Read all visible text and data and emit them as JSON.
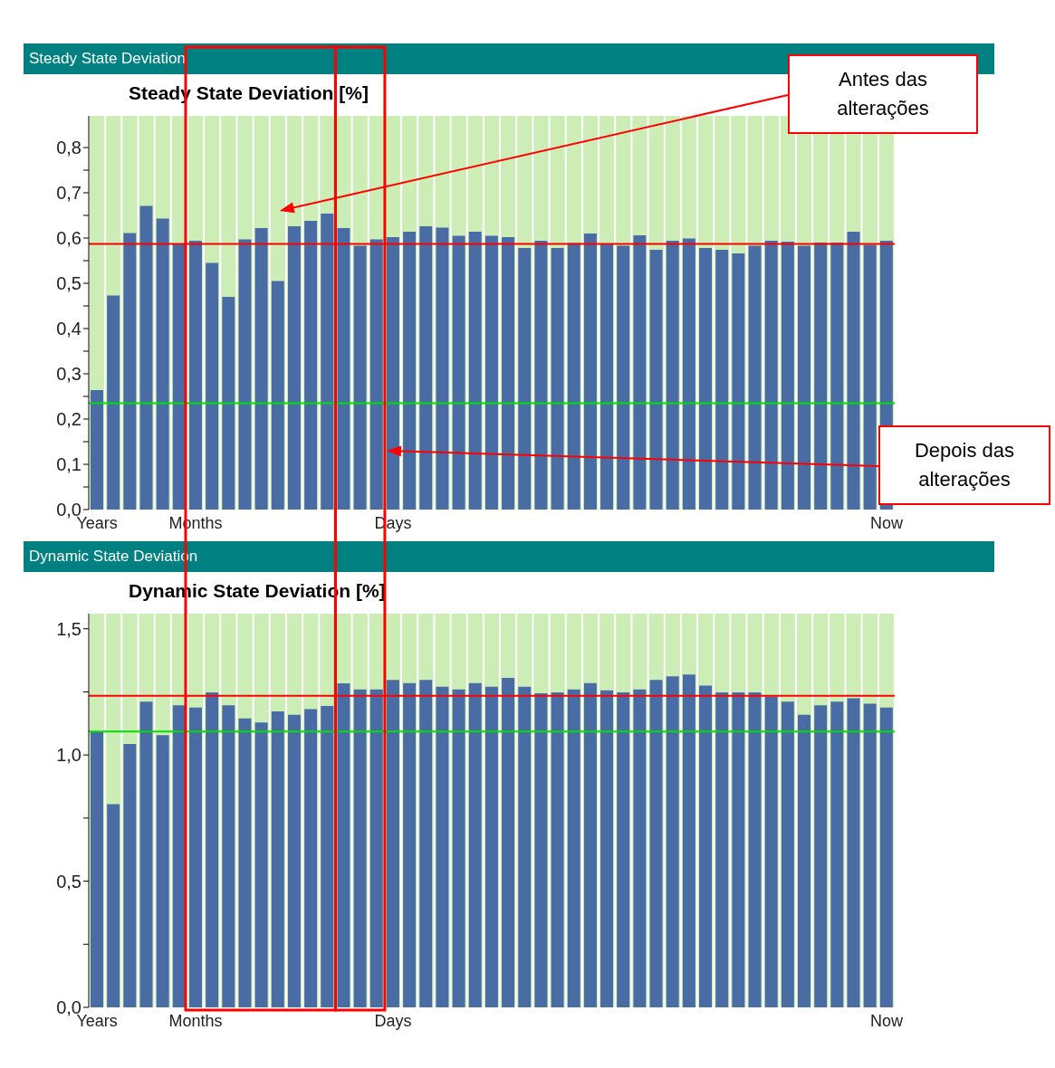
{
  "chart_data": [
    {
      "type": "bar",
      "subtitle": "Steady State Deviation",
      "title": "Steady State Deviation [%]",
      "categories": [
        "Years",
        null,
        null,
        null,
        null,
        null,
        "Months",
        null,
        null,
        null,
        null,
        null,
        null,
        null,
        null,
        null,
        null,
        null,
        "Days",
        null,
        null,
        null,
        null,
        null,
        null,
        null,
        null,
        null,
        null,
        null,
        null,
        null,
        null,
        null,
        null,
        null,
        null,
        null,
        null,
        null,
        null,
        null,
        null,
        null,
        null,
        null,
        null,
        null,
        "Now"
      ],
      "values": [
        0.264,
        0.473,
        0.611,
        0.671,
        0.643,
        0.587,
        0.594,
        0.545,
        0.47,
        0.597,
        0.622,
        0.505,
        0.626,
        0.638,
        0.654,
        0.622,
        0.583,
        0.597,
        0.602,
        0.614,
        0.626,
        0.623,
        0.605,
        0.614,
        0.605,
        0.602,
        0.578,
        0.594,
        0.578,
        0.589,
        0.61,
        0.586,
        0.583,
        0.606,
        0.574,
        0.594,
        0.599,
        0.578,
        0.574,
        0.566,
        0.583,
        0.594,
        0.592,
        0.583,
        0.59,
        0.59,
        0.614,
        0.585,
        0.594
      ],
      "color": "#4a6ca5",
      "ylim": [
        0,
        0.87
      ],
      "yticks": [
        {
          "value": 0,
          "label": "0,0"
        },
        {
          "value": 0.05,
          "label": null
        },
        {
          "value": 0.1,
          "label": "0,1"
        },
        {
          "value": 0.15,
          "label": null
        },
        {
          "value": 0.2,
          "label": "0,2"
        },
        {
          "value": 0.25,
          "label": null
        },
        {
          "value": 0.3,
          "label": "0,3"
        },
        {
          "value": 0.35,
          "label": null
        },
        {
          "value": 0.4,
          "label": "0,4"
        },
        {
          "value": 0.45,
          "label": null
        },
        {
          "value": 0.5,
          "label": "0,5"
        },
        {
          "value": 0.55,
          "label": null
        },
        {
          "value": 0.6,
          "label": "0,6"
        },
        {
          "value": 0.65,
          "label": null
        },
        {
          "value": 0.7,
          "label": "0,7"
        },
        {
          "value": 0.75,
          "label": null
        },
        {
          "value": 0.8,
          "label": "0,8"
        }
      ],
      "ref_lines": [
        {
          "axis": "y",
          "value": 0.235,
          "color": "#00e000"
        },
        {
          "axis": "y",
          "value": 0.587,
          "color": "#ff0000"
        }
      ],
      "annotations": [
        "Antes das alterações",
        "Depois das alterações"
      ]
    },
    {
      "type": "bar",
      "subtitle": "Dynamic State Deviation",
      "title": "Dynamic State Deviation [%]",
      "categories": [
        "Years",
        null,
        null,
        null,
        null,
        null,
        "Months",
        null,
        null,
        null,
        null,
        null,
        null,
        null,
        null,
        null,
        null,
        null,
        "Days",
        null,
        null,
        null,
        null,
        null,
        null,
        null,
        null,
        null,
        null,
        null,
        null,
        null,
        null,
        null,
        null,
        null,
        null,
        null,
        null,
        null,
        null,
        null,
        null,
        null,
        null,
        null,
        null,
        null,
        "Now"
      ],
      "values": [
        1.091,
        0.805,
        1.044,
        1.211,
        1.079,
        1.197,
        1.188,
        1.248,
        1.197,
        1.145,
        1.129,
        1.173,
        1.159,
        1.182,
        1.194,
        1.284,
        1.26,
        1.26,
        1.297,
        1.285,
        1.297,
        1.27,
        1.26,
        1.285,
        1.27,
        1.305,
        1.27,
        1.244,
        1.248,
        1.26,
        1.285,
        1.256,
        1.248,
        1.26,
        1.297,
        1.312,
        1.319,
        1.275,
        1.248,
        1.248,
        1.248,
        1.232,
        1.211,
        1.159,
        1.197,
        1.211,
        1.225,
        1.203,
        1.188
      ],
      "color": "#4a6ca5",
      "ylim": [
        0,
        1.56
      ],
      "yticks": [
        {
          "value": 0,
          "label": "0,0"
        },
        {
          "value": 0.25,
          "label": null
        },
        {
          "value": 0.5,
          "label": "0,5"
        },
        {
          "value": 0.75,
          "label": null
        },
        {
          "value": 1,
          "label": "1,0"
        },
        {
          "value": 1.25,
          "label": null
        },
        {
          "value": 1.5,
          "label": "1,5"
        }
      ],
      "ref_lines": [
        {
          "axis": "y",
          "value": 1.093,
          "color": "#00e000"
        },
        {
          "axis": "y",
          "value": 1.235,
          "color": "#ff0000"
        }
      ]
    }
  ]
}
